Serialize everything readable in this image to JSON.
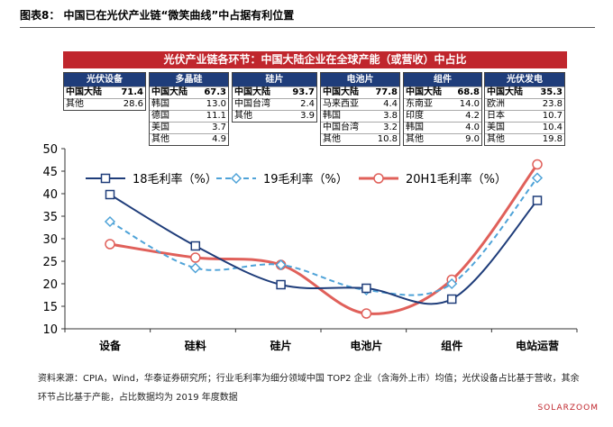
{
  "figure": {
    "title": "图表8：   中国已在光伏产业链“微笑曲线”中占据有利位置",
    "banner": "光伏产业链各环节：中国大陆企业在全球产能（或营收）中占比",
    "source": "资料来源：CPIA，Wind，华泰证券研究所；行业毛利率为细分领域中国 TOP2 企业（含海外上市）均值；光伏设备占比基于营收，其余环节占比基于产能，占比数据均为 2019 年度数据",
    "watermark": "SOLARZOOM"
  },
  "shares": [
    {
      "header": "光伏设备",
      "rows": [
        {
          "label": "中国大陆",
          "value": "71.4"
        },
        {
          "label": "其他",
          "value": "28.6"
        }
      ]
    },
    {
      "header": "多晶硅",
      "rows": [
        {
          "label": "中国大陆",
          "value": "67.3"
        },
        {
          "label": "韩国",
          "value": "13.0"
        },
        {
          "label": "德国",
          "value": "11.1"
        },
        {
          "label": "美国",
          "value": "3.7"
        },
        {
          "label": "其他",
          "value": "4.9"
        }
      ]
    },
    {
      "header": "硅片",
      "rows": [
        {
          "label": "中国大陆",
          "value": "93.7"
        },
        {
          "label": "中国台湾",
          "value": "2.4"
        },
        {
          "label": "其他",
          "value": "3.9"
        }
      ]
    },
    {
      "header": "电池片",
      "rows": [
        {
          "label": "中国大陆",
          "value": "77.8"
        },
        {
          "label": "马来西亚",
          "value": "4.4"
        },
        {
          "label": "韩国",
          "value": "3.8"
        },
        {
          "label": "中国台湾",
          "value": "3.2"
        },
        {
          "label": "其他",
          "value": "10.8"
        }
      ]
    },
    {
      "header": "组件",
      "rows": [
        {
          "label": "中国大陆",
          "value": "68.8"
        },
        {
          "label": "东南亚",
          "value": "14.0"
        },
        {
          "label": "印度",
          "value": "4.2"
        },
        {
          "label": "韩国",
          "value": "4.0"
        },
        {
          "label": "其他",
          "value": "9.0"
        }
      ]
    },
    {
      "header": "光伏发电",
      "rows": [
        {
          "label": "中国大陆",
          "value": "35.3"
        },
        {
          "label": "欧洲",
          "value": "23.8"
        },
        {
          "label": "日本",
          "value": "10.7"
        },
        {
          "label": "美国",
          "value": "10.4"
        },
        {
          "label": "其他",
          "value": "19.8"
        }
      ]
    }
  ],
  "chart_data": {
    "type": "line",
    "categories": [
      "设备",
      "硅料",
      "硅片",
      "电池片",
      "组件",
      "电站运营"
    ],
    "series": [
      {
        "name": "18毛利率（%）",
        "values": [
          39.8,
          28.4,
          19.8,
          19.0,
          16.6,
          38.5
        ],
        "color": "#1f3d7a",
        "style": "solid",
        "marker": "square"
      },
      {
        "name": "19毛利率（%）",
        "values": [
          33.8,
          23.5,
          24.2,
          18.6,
          20.0,
          43.5
        ],
        "color": "#4fa3d8",
        "style": "dashed",
        "marker": "diamond"
      },
      {
        "name": "20H1毛利率（%）",
        "values": [
          28.8,
          25.8,
          24.2,
          13.4,
          20.9,
          46.5
        ],
        "color": "#e0605a",
        "style": "solid",
        "marker": "circle"
      }
    ],
    "ylim": [
      10,
      50
    ],
    "yticks": [
      "10",
      "15",
      "20",
      "25",
      "30",
      "35",
      "40",
      "45",
      "50"
    ],
    "xlabel": "",
    "ylabel": "",
    "legend": "top",
    "grid": false
  }
}
